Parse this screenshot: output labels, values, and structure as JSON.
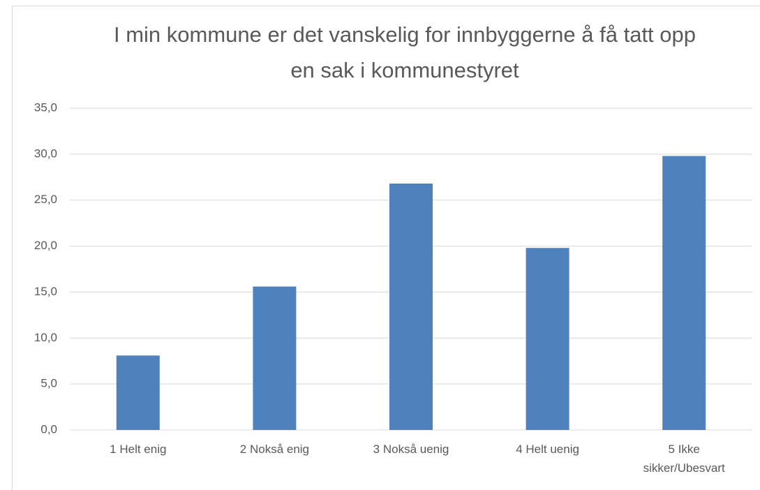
{
  "chart_data": {
    "type": "bar",
    "title": "I min kommune er det vanskelig for innbyggerne å få tatt opp en sak i kommunestyret",
    "categories": [
      "1 Helt enig",
      "2 Nokså enig",
      "3 Nokså uenig",
      "4 Helt uenig",
      "5 Ikke sikker/Ubesvart"
    ],
    "values": [
      8.1,
      15.6,
      26.8,
      19.8,
      29.8
    ],
    "color": "#4f81bd",
    "ylim": [
      0,
      35
    ],
    "yticks": [
      {
        "value": 0,
        "label": "0,0"
      },
      {
        "value": 5,
        "label": "5,0"
      },
      {
        "value": 10,
        "label": "10,0"
      },
      {
        "value": 15,
        "label": "15,0"
      },
      {
        "value": 20,
        "label": "20,0"
      },
      {
        "value": 25,
        "label": "25,0"
      },
      {
        "value": 30,
        "label": "30,0"
      },
      {
        "value": 35,
        "label": "35,0"
      }
    ],
    "grid": true
  }
}
